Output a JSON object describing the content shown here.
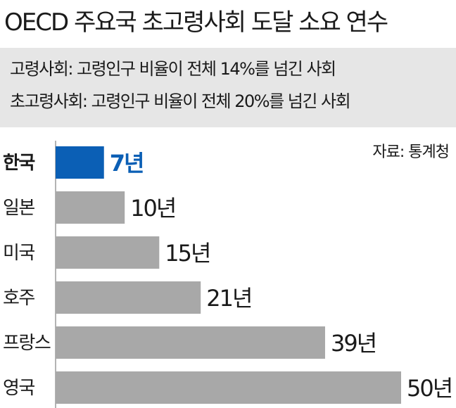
{
  "title": "OECD 주요국 초고령사회 도달 소요 연수",
  "definitions": [
    "고령사회: 고령인구 비율이 전체 14%를 넘긴 사회",
    "초고령사회: 고령인구 비율이 전체 20%를 넘긴 사회"
  ],
  "source": "자료: 통계청",
  "colors": {
    "highlight": "#0b5fb5",
    "bar": "#a8a8a8",
    "axis": "#9a9a9a",
    "box": "#e6e6e6"
  },
  "chart_data": {
    "type": "bar",
    "orientation": "horizontal",
    "categories": [
      "한국",
      "일본",
      "미국",
      "호주",
      "프랑스",
      "영국"
    ],
    "values": [
      7,
      10,
      15,
      21,
      39,
      50
    ],
    "unit": "년",
    "data_labels": [
      "7년",
      "10년",
      "15년",
      "21년",
      "39년",
      "50년"
    ],
    "highlight": "한국",
    "xlim": [
      0,
      50
    ],
    "grid": false
  }
}
